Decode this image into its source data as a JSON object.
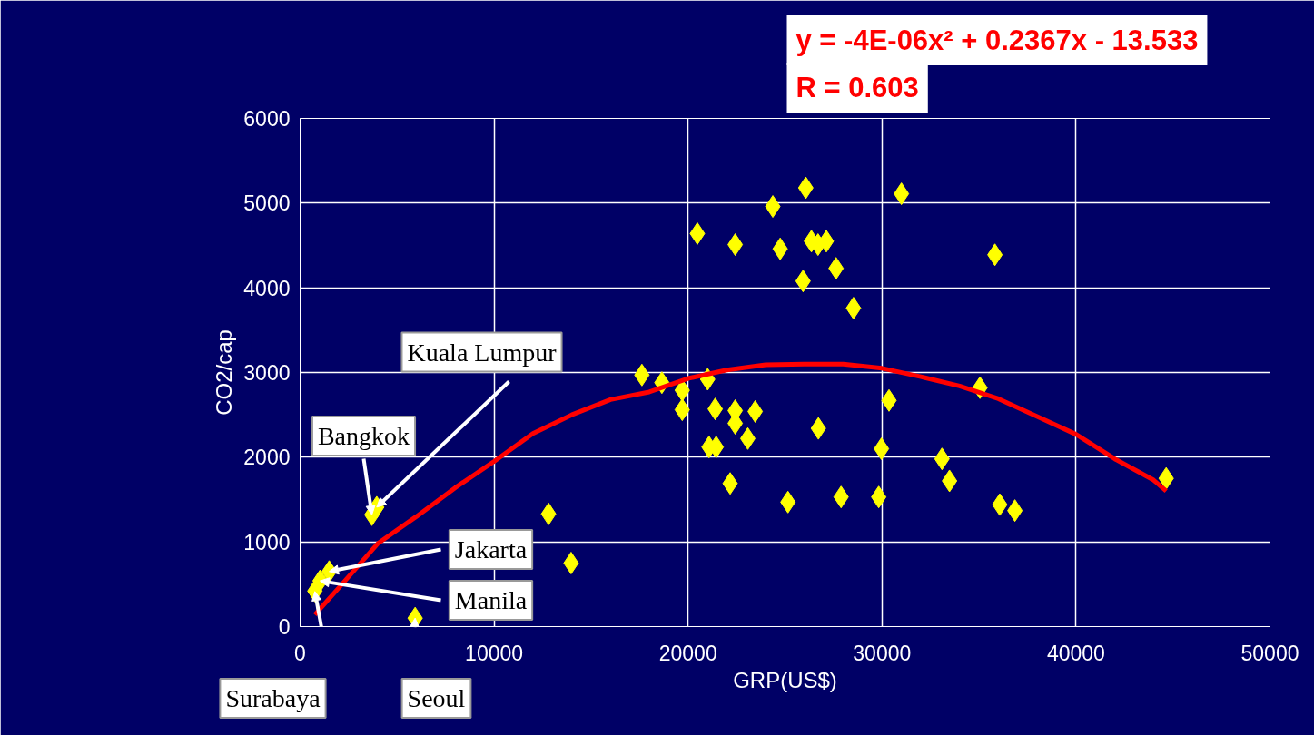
{
  "chart_data": {
    "type": "scatter",
    "xlabel": "GRP(US$)",
    "ylabel": "CO2/cap",
    "xlim": [
      0,
      50000
    ],
    "ylim": [
      0,
      6000
    ],
    "xticks": [
      0,
      10000,
      20000,
      30000,
      40000,
      50000
    ],
    "yticks": [
      0,
      1000,
      2000,
      3000,
      4000,
      5000,
      6000
    ],
    "grid": true,
    "series": [
      {
        "marker": "diamond",
        "color": "#ffff00",
        "x": [
          1500,
          1030,
          760,
          5930,
          3950,
          3700,
          12810,
          13970,
          17620,
          18650,
          19700,
          21010,
          19700,
          21400,
          22430,
          23460,
          22430,
          23080,
          21080,
          21450,
          22170,
          25150,
          20480,
          22430,
          24370,
          24750,
          26070,
          31000,
          26360,
          26700,
          27130,
          35820,
          27630,
          25930,
          28530,
          35050,
          30360,
          26720,
          29970,
          33090,
          33480,
          27890,
          29830,
          36070,
          36850,
          44650
        ],
        "values": [
          650,
          540,
          420,
          100,
          1410,
          1320,
          1330,
          750,
          2970,
          2880,
          2790,
          2920,
          2560,
          2570,
          2550,
          2540,
          2400,
          2220,
          2120,
          2120,
          1690,
          1470,
          4640,
          4510,
          4960,
          4460,
          5180,
          5110,
          4550,
          4510,
          4550,
          4390,
          4230,
          4080,
          3760,
          2820,
          2670,
          2340,
          2100,
          1980,
          1720,
          1530,
          1530,
          1440,
          1370,
          1750
        ]
      },
      {
        "type": "line",
        "color": "#ff0000",
        "x": [
          760,
          2000,
          4000,
          6000,
          8000,
          10000,
          12000,
          14000,
          16000,
          18000,
          20000,
          22000,
          24000,
          26000,
          28000,
          30000,
          32000,
          34000,
          36000,
          38000,
          40000,
          42000,
          44000,
          44650
        ],
        "values": [
          140,
          460,
          980,
          1300,
          1640,
          1950,
          2280,
          2500,
          2680,
          2770,
          2930,
          3030,
          3090,
          3100,
          3100,
          3050,
          2950,
          2840,
          2690,
          2480,
          2270,
          1980,
          1730,
          1600
        ]
      }
    ],
    "annotations": [
      {
        "text": "Kuala Lumpur",
        "x": 3950,
        "y": 1410
      },
      {
        "text": "Bangkok",
        "x": 3700,
        "y": 1320
      },
      {
        "text": "Jakarta",
        "x": 1500,
        "y": 650
      },
      {
        "text": "Manila",
        "x": 1030,
        "y": 540
      },
      {
        "text": "Surabaya",
        "x": 760,
        "y": 415
      },
      {
        "text": "Seoul",
        "x": 5930,
        "y": 100
      },
      "y = -4E-06x² + 0.2367x - 13.533",
      "R = 0.603"
    ]
  }
}
